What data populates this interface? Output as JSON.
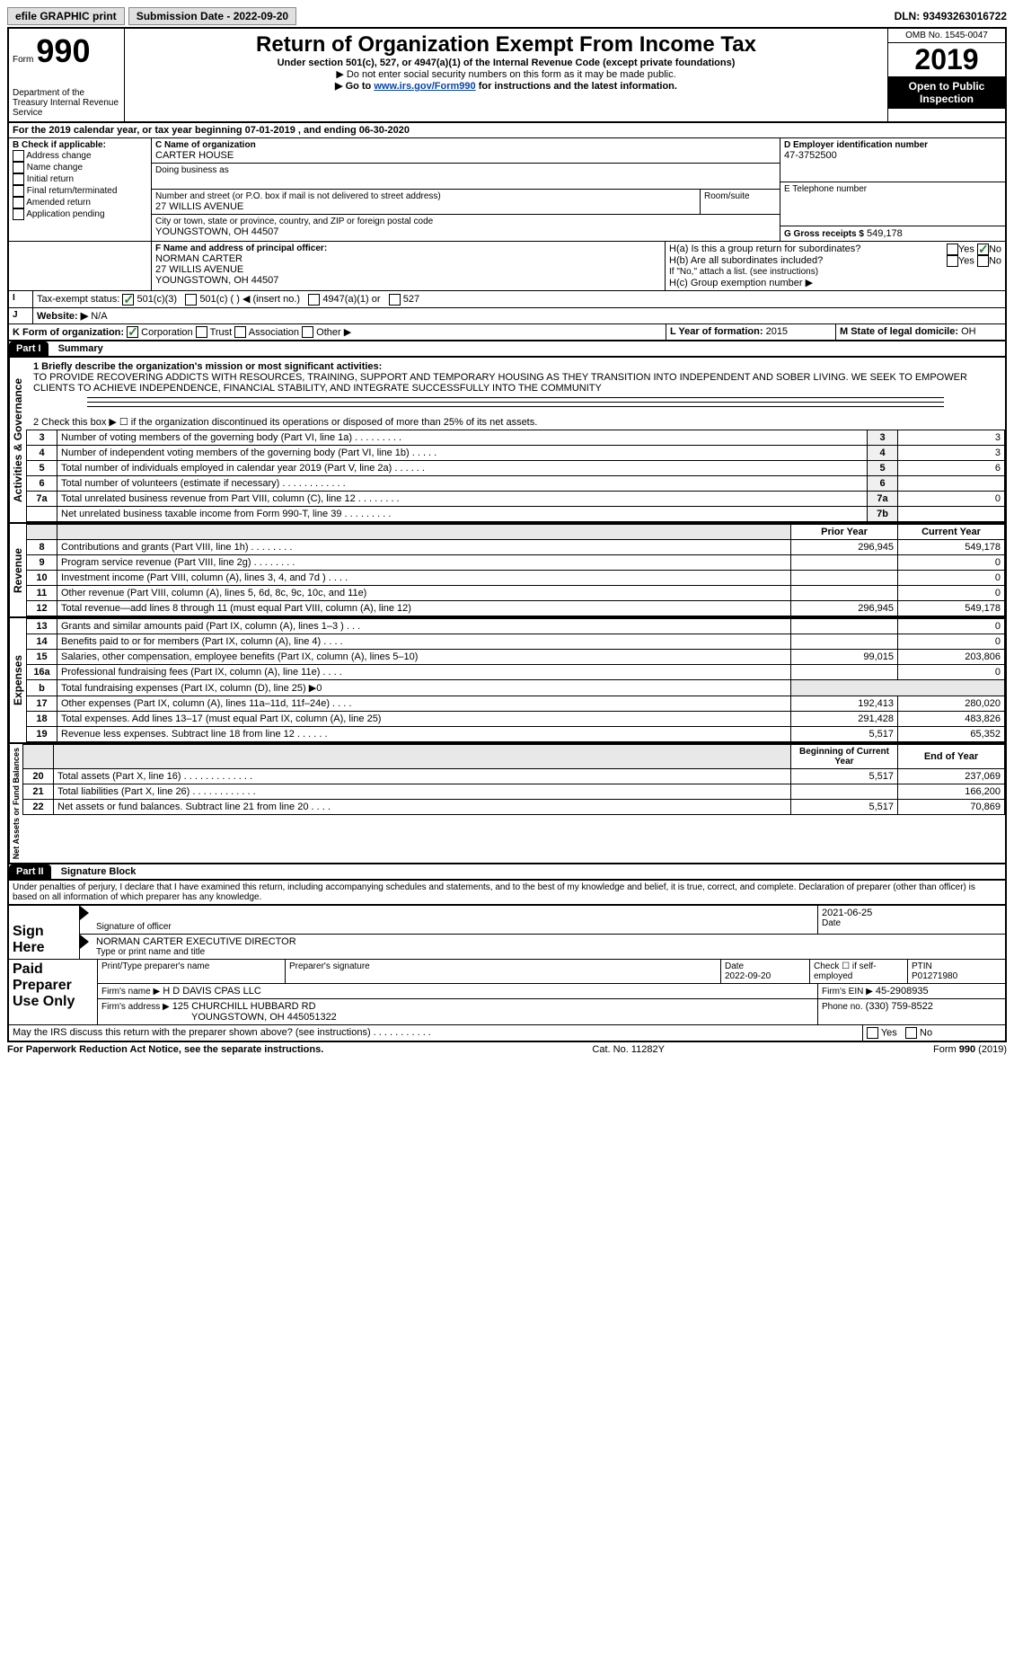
{
  "top": {
    "efile": "efile GRAPHIC print",
    "submission_label": "Submission Date - 2022-09-20",
    "dln": "DLN: 93493263016722"
  },
  "header": {
    "form_label": "Form",
    "form_num": "990",
    "dept": "Department of the Treasury\nInternal Revenue Service",
    "title": "Return of Organization Exempt From Income Tax",
    "subtitle": "Under section 501(c), 527, or 4947(a)(1) of the Internal Revenue Code (except private foundations)",
    "warn": "▶ Do not enter social security numbers on this form as it may be made public.",
    "goto_prefix": "▶ Go to ",
    "goto_link": "www.irs.gov/Form990",
    "goto_suffix": " for instructions and the latest information.",
    "omb": "OMB No. 1545-0047",
    "year": "2019",
    "open": "Open to Public Inspection"
  },
  "period": "For the 2019 calendar year, or tax year beginning 07-01-2019   , and ending 06-30-2020",
  "blockB": {
    "label": "B Check if applicable:",
    "addr_change": "Address change",
    "name_change": "Name change",
    "initial": "Initial return",
    "final": "Final return/terminated",
    "amended": "Amended return",
    "app_pending": "Application pending"
  },
  "blockC": {
    "c_label": "C Name of organization",
    "org": "CARTER HOUSE",
    "dba": "Doing business as",
    "addr_label": "Number and street (or P.O. box if mail is not delivered to street address)",
    "room": "Room/suite",
    "addr": "27 WILLIS AVENUE",
    "city_label": "City or town, state or province, country, and ZIP or foreign postal code",
    "city": "YOUNGSTOWN, OH  44507"
  },
  "blockD": {
    "label": "D Employer identification number",
    "ein": "47-3752500"
  },
  "blockE": {
    "label": "E Telephone number"
  },
  "blockG": {
    "label": "G Gross receipts $",
    "val": "549,178"
  },
  "blockF": {
    "label": "F  Name and address of principal officer:",
    "name": "NORMAN CARTER",
    "addr1": "27 WILLIS AVENUE",
    "addr2": "YOUNGSTOWN, OH  44507"
  },
  "blockH": {
    "ha": "H(a)  Is this a group return for subordinates?",
    "hb": "H(b)  Are all subordinates included?",
    "hb_note": "If \"No,\" attach a list. (see instructions)",
    "hc": "H(c)  Group exemption number ▶",
    "yes": "Yes",
    "no": "No"
  },
  "taxExempt": {
    "label": "Tax-exempt status:",
    "o1": "501(c)(3)",
    "o2": "501(c) (  ) ◀ (insert no.)",
    "o3": "4947(a)(1) or",
    "o4": "527"
  },
  "website": {
    "label": "Website: ▶",
    "val": "N/A"
  },
  "formOrg": {
    "label": "K Form of organization:",
    "corp": "Corporation",
    "trust": "Trust",
    "assoc": "Association",
    "other": "Other ▶"
  },
  "yearFormed": {
    "label": "L Year of formation:",
    "val": "2015"
  },
  "domicile": {
    "label": "M State of legal domicile:",
    "val": "OH"
  },
  "part1": {
    "header": "Part I",
    "title": "Summary",
    "l1_label": "1  Briefly describe the organization's mission or most significant activities:",
    "mission": "TO PROVIDE RECOVERING ADDICTS WITH RESOURCES, TRAINING, SUPPORT AND TEMPORARY HOUSING AS THEY TRANSITION INTO INDEPENDENT AND SOBER LIVING. WE SEEK TO EMPOWER CLIENTS TO ACHIEVE INDEPENDENCE, FINANCIAL STABILITY, AND INTEGRATE SUCCESSFULLY INTO THE COMMUNITY",
    "l2": "2   Check this box ▶ ☐ if the organization discontinued its operations or disposed of more than 25% of its net assets.",
    "rows": [
      {
        "n": "3",
        "t": "Number of voting members of the governing body (Part VI, line 1a)   .    .    .    .    .    .    .    .    .",
        "r": "3",
        "v": "3"
      },
      {
        "n": "4",
        "t": "Number of independent voting members of the governing body (Part VI, line 1b)  .   .   .   .   .",
        "r": "4",
        "v": "3"
      },
      {
        "n": "5",
        "t": "Total number of individuals employed in calendar year 2019 (Part V, line 2a)  .   .   .   .   .   .",
        "r": "5",
        "v": "6"
      },
      {
        "n": "6",
        "t": "Total number of volunteers (estimate if necessary)   .    .    .    .    .    .    .    .    .    .    .    .",
        "r": "6",
        "v": ""
      },
      {
        "n": "7a",
        "t": "Total unrelated business revenue from Part VIII, column (C), line 12  .   .   .   .   .   .   .   .",
        "r": "7a",
        "v": "0"
      },
      {
        "n": "",
        "t": "Net unrelated business taxable income from Form 990-T, line 39   .    .    .    .    .    .    .    .    .",
        "r": "7b",
        "v": ""
      }
    ],
    "prior": "Prior Year",
    "current": "Current Year",
    "rev_rows": [
      {
        "n": "8",
        "t": "Contributions and grants (Part VIII, line 1h)   .    .    .    .    .    .    .    .",
        "p": "296,945",
        "c": "549,178"
      },
      {
        "n": "9",
        "t": "Program service revenue (Part VIII, line 2g)   .    .    .    .    .    .    .    .",
        "p": "",
        "c": "0"
      },
      {
        "n": "10",
        "t": "Investment income (Part VIII, column (A), lines 3, 4, and 7d )  .   .   .   .",
        "p": "",
        "c": "0"
      },
      {
        "n": "11",
        "t": "Other revenue (Part VIII, column (A), lines 5, 6d, 8c, 9c, 10c, and 11e)",
        "p": "",
        "c": "0"
      },
      {
        "n": "12",
        "t": "Total revenue—add lines 8 through 11 (must equal Part VIII, column (A), line 12)",
        "p": "296,945",
        "c": "549,178"
      }
    ],
    "exp_rows": [
      {
        "n": "13",
        "t": "Grants and similar amounts paid (Part IX, column (A), lines 1–3 )  .   .   .",
        "p": "",
        "c": "0"
      },
      {
        "n": "14",
        "t": "Benefits paid to or for members (Part IX, column (A), line 4)  .   .   .   .",
        "p": "",
        "c": "0"
      },
      {
        "n": "15",
        "t": "Salaries, other compensation, employee benefits (Part IX, column (A), lines 5–10)",
        "p": "99,015",
        "c": "203,806"
      },
      {
        "n": "16a",
        "t": "Professional fundraising fees (Part IX, column (A), line 11e)  .   .   .   .",
        "p": "",
        "c": "0"
      },
      {
        "n": "b",
        "t": "Total fundraising expenses (Part IX, column (D), line 25) ▶0",
        "p": "—",
        "c": "—"
      },
      {
        "n": "17",
        "t": "Other expenses (Part IX, column (A), lines 11a–11d, 11f–24e)  .   .   .   .",
        "p": "192,413",
        "c": "280,020"
      },
      {
        "n": "18",
        "t": "Total expenses. Add lines 13–17 (must equal Part IX, column (A), line 25)",
        "p": "291,428",
        "c": "483,826"
      },
      {
        "n": "19",
        "t": "Revenue less expenses. Subtract line 18 from line 12  .   .   .   .   .   .",
        "p": "5,517",
        "c": "65,352"
      }
    ],
    "begin": "Beginning of Current Year",
    "end": "End of Year",
    "net_rows": [
      {
        "n": "20",
        "t": "Total assets (Part X, line 16)  .   .   .   .   .   .   .   .   .   .   .   .   .",
        "p": "5,517",
        "c": "237,069"
      },
      {
        "n": "21",
        "t": "Total liabilities (Part X, line 26)  .   .   .   .   .   .   .   .   .   .   .   .",
        "p": "",
        "c": "166,200"
      },
      {
        "n": "22",
        "t": "Net assets or fund balances. Subtract line 21 from line 20   .    .    .    .",
        "p": "5,517",
        "c": "70,869"
      }
    ]
  },
  "vert": {
    "gov": "Activities & Governance",
    "rev": "Revenue",
    "exp": "Expenses",
    "net": "Net Assets or Fund Balances"
  },
  "part2": {
    "header": "Part II",
    "title": "Signature Block",
    "decl": "Under penalties of perjury, I declare that I have examined this return, including accompanying schedules and statements, and to the best of my knowledge and belief, it is true, correct, and complete. Declaration of preparer (other than officer) is based on all information of which preparer has any knowledge.",
    "sign_here": "Sign Here",
    "sig_officer": "Signature of officer",
    "date": "Date",
    "sig_date": "2021-06-25",
    "name_title": "NORMAN CARTER  EXECUTIVE DIRECTOR",
    "type_name": "Type or print name and title",
    "paid": "Paid Preparer Use Only",
    "prep_name_label": "Print/Type preparer's name",
    "prep_sig_label": "Preparer's signature",
    "prep_date_label": "Date",
    "prep_date": "2022-09-20",
    "check_self": "Check ☐ if self-employed",
    "ptin_label": "PTIN",
    "ptin": "P01271980",
    "firm_name_label": "Firm's name   ▶",
    "firm_name": "H D DAVIS CPAS LLC",
    "firm_ein_label": "Firm's EIN ▶",
    "firm_ein": "45-2908935",
    "firm_addr_label": "Firm's address ▶",
    "firm_addr": "125 CHURCHILL HUBBARD RD",
    "firm_city": "YOUNGSTOWN, OH  445051322",
    "phone_label": "Phone no.",
    "phone": "(330) 759-8522",
    "discuss": "May the IRS discuss this return with the preparer shown above? (see instructions)   .    .    .    .    .    .    .    .    .    .    .",
    "yes": "Yes",
    "no": "No"
  },
  "footer": {
    "notice": "For Paperwork Reduction Act Notice, see the separate instructions.",
    "cat": "Cat. No. 11282Y",
    "form": "Form 990 (2019)"
  }
}
